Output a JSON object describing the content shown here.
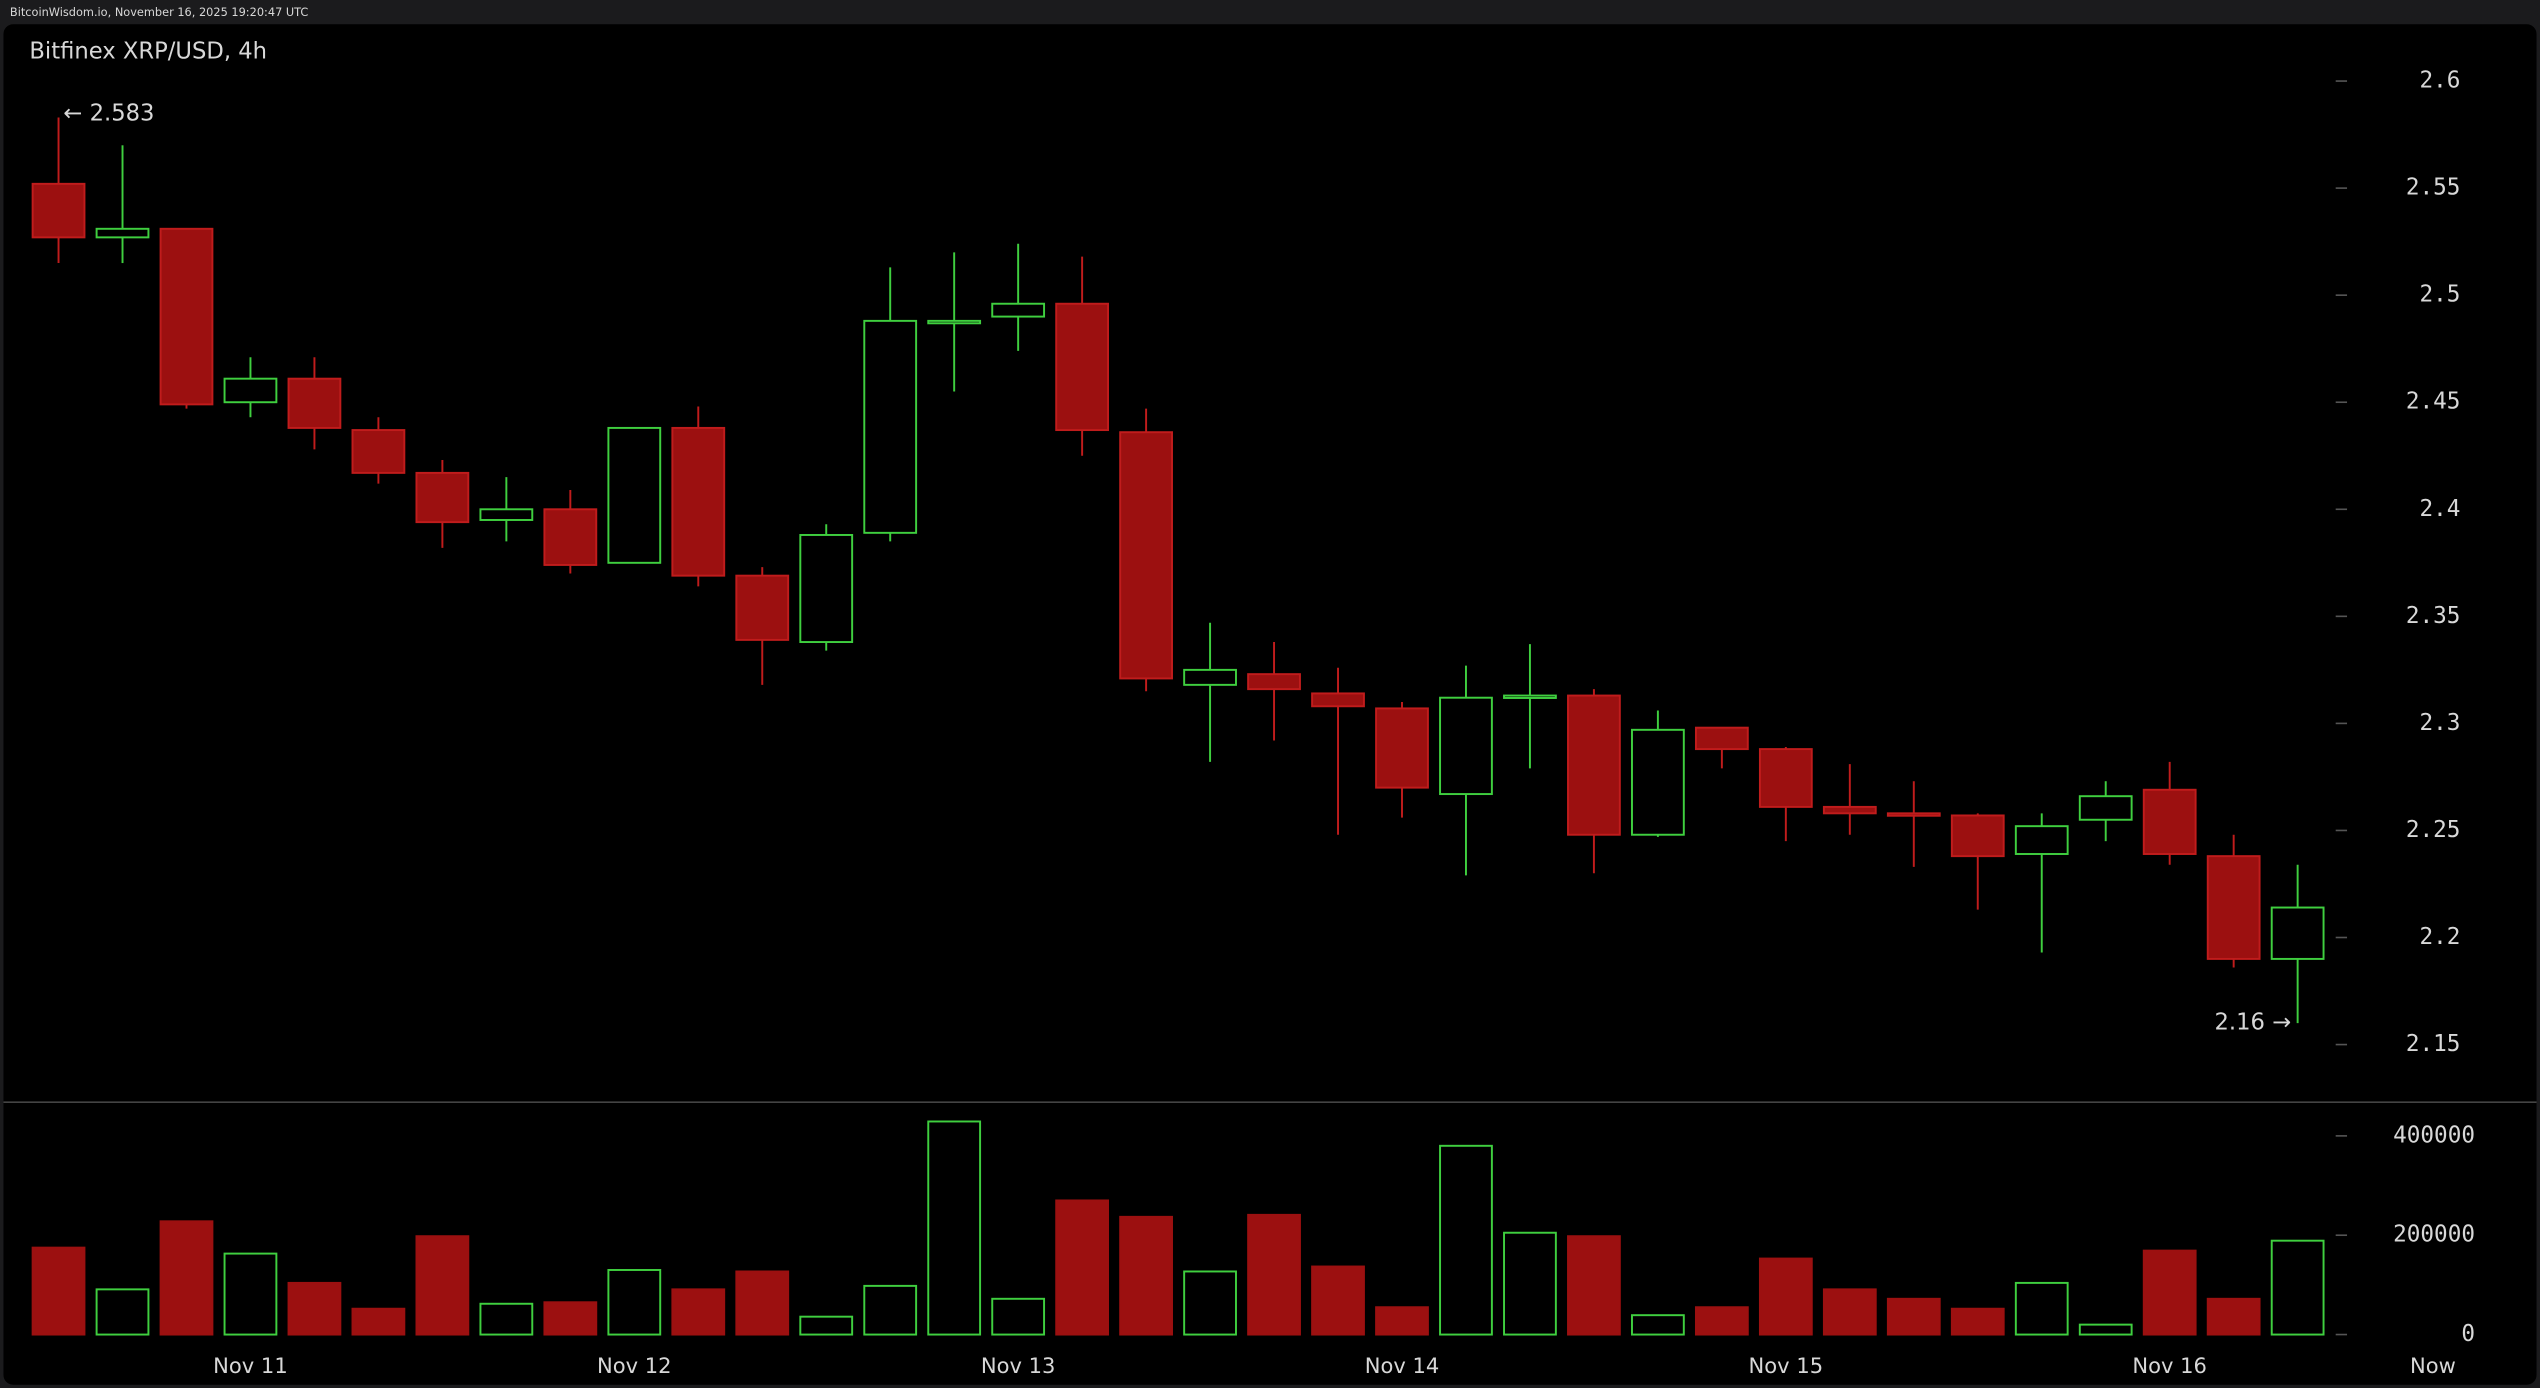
{
  "header": "BitcoinWisdom.io, November 16, 2025 19:20:47 UTC",
  "chart_data": {
    "type": "candlestick",
    "title": "Bitfinex XRP/USD, 4h",
    "categories": [
      null,
      null,
      null,
      "Nov 11",
      null,
      null,
      null,
      null,
      null,
      "Nov 12",
      null,
      null,
      null,
      null,
      null,
      "Nov 13",
      null,
      null,
      null,
      null,
      null,
      "Nov 14",
      null,
      null,
      null,
      null,
      null,
      "Nov 15",
      null,
      null,
      null,
      null,
      null,
      "Nov 16",
      null,
      null
    ],
    "x_end_label": "Now",
    "open": [
      2.552,
      2.527,
      2.531,
      2.45,
      2.461,
      2.437,
      2.417,
      2.395,
      2.4,
      2.375,
      2.438,
      2.369,
      2.338,
      2.389,
      2.487,
      2.49,
      2.496,
      2.436,
      2.318,
      2.323,
      2.314,
      2.307,
      2.267,
      2.312,
      2.313,
      2.248,
      2.298,
      2.288,
      2.261,
      2.258,
      2.257,
      2.239,
      2.255,
      2.269,
      2.238,
      2.19
    ],
    "high": [
      2.583,
      2.57,
      2.531,
      2.471,
      2.471,
      2.443,
      2.423,
      2.415,
      2.409,
      2.438,
      2.448,
      2.373,
      2.393,
      2.513,
      2.52,
      2.524,
      2.518,
      2.447,
      2.347,
      2.338,
      2.326,
      2.31,
      2.327,
      2.337,
      2.316,
      2.306,
      2.298,
      2.289,
      2.281,
      2.273,
      2.258,
      2.258,
      2.273,
      2.282,
      2.248,
      2.234
    ],
    "low": [
      2.515,
      2.515,
      2.447,
      2.443,
      2.428,
      2.412,
      2.382,
      2.385,
      2.37,
      2.375,
      2.364,
      2.318,
      2.334,
      2.385,
      2.455,
      2.474,
      2.425,
      2.315,
      2.282,
      2.292,
      2.248,
      2.256,
      2.229,
      2.279,
      2.23,
      2.247,
      2.279,
      2.245,
      2.248,
      2.233,
      2.213,
      2.193,
      2.245,
      2.234,
      2.186,
      2.16
    ],
    "close": [
      2.527,
      2.531,
      2.449,
      2.461,
      2.438,
      2.417,
      2.394,
      2.4,
      2.374,
      2.438,
      2.369,
      2.339,
      2.388,
      2.488,
      2.488,
      2.496,
      2.437,
      2.321,
      2.325,
      2.316,
      2.308,
      2.27,
      2.312,
      2.313,
      2.248,
      2.297,
      2.288,
      2.261,
      2.258,
      2.257,
      2.238,
      2.252,
      2.266,
      2.239,
      2.19,
      2.214
    ],
    "volume": [
      175000,
      91000,
      228000,
      163000,
      104000,
      52000,
      198000,
      62000,
      65000,
      130000,
      91000,
      127000,
      36000,
      98000,
      429000,
      72000,
      270000,
      237000,
      127000,
      241000,
      137000,
      55000,
      380000,
      205000,
      198000,
      39000,
      55000,
      153000,
      91000,
      72000,
      52000,
      104000,
      20000,
      169000,
      72000,
      189000
    ],
    "up_color": "#3fcf3f",
    "down_color": "#9c1010",
    "down_edge_color": "#c01c1c",
    "ylim": [
      2.125,
      2.625
    ],
    "yticks": [
      2.15,
      2.2,
      2.25,
      2.3,
      2.35,
      2.4,
      2.45,
      2.5,
      2.55,
      2.6
    ],
    "volume_ylim": [
      0,
      450000
    ],
    "volume_yticks": [
      0,
      200000,
      400000
    ],
    "annotations": [
      {
        "text": "← 2.583"
      },
      {
        "text": "2.16 →"
      }
    ]
  }
}
